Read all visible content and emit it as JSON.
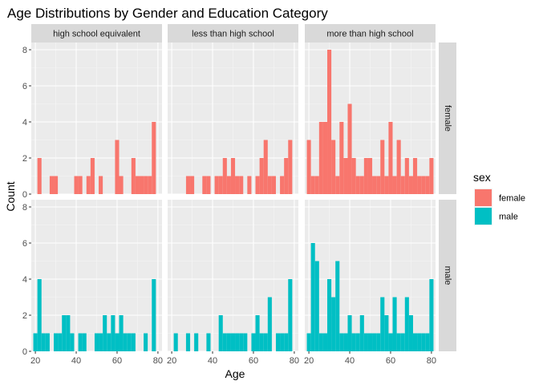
{
  "chart_data": {
    "type": "bar",
    "subtype": "faceted-histogram",
    "title": "Age Distributions by Gender and Education Category",
    "xlabel": "Age",
    "ylabel": "Count",
    "xlim": [
      18,
      82
    ],
    "ylim": [
      0,
      8.4
    ],
    "xticks": [
      20,
      40,
      60,
      80
    ],
    "yticks": [
      0,
      2,
      4,
      6,
      8
    ],
    "bin_width": 2,
    "grid": true,
    "legend": {
      "title": "sex",
      "placement": "right",
      "entries": [
        {
          "name": "female",
          "color": "#F8766D"
        },
        {
          "name": "male",
          "color": "#00BFC4"
        }
      ]
    },
    "col_facets": [
      "high school equivalent",
      "less than high school",
      "more than high school"
    ],
    "row_facets": [
      "female",
      "male"
    ],
    "panels": [
      {
        "col": "high school equivalent",
        "row": "female",
        "bins": [
          [
            22,
            2
          ],
          [
            28,
            1
          ],
          [
            30,
            1
          ],
          [
            40,
            1
          ],
          [
            42,
            1
          ],
          [
            46,
            1
          ],
          [
            48,
            2
          ],
          [
            52,
            1
          ],
          [
            60,
            3
          ],
          [
            62,
            1
          ],
          [
            68,
            2
          ],
          [
            70,
            1
          ],
          [
            72,
            1
          ],
          [
            74,
            1
          ],
          [
            76,
            1
          ],
          [
            78,
            4
          ]
        ]
      },
      {
        "col": "less than high school",
        "row": "female",
        "bins": [
          [
            28,
            1
          ],
          [
            30,
            1
          ],
          [
            36,
            1
          ],
          [
            38,
            1
          ],
          [
            42,
            1
          ],
          [
            44,
            1
          ],
          [
            46,
            2
          ],
          [
            48,
            1
          ],
          [
            50,
            2
          ],
          [
            52,
            1
          ],
          [
            54,
            1
          ],
          [
            58,
            1
          ],
          [
            62,
            1
          ],
          [
            64,
            2
          ],
          [
            66,
            3
          ],
          [
            68,
            1
          ],
          [
            70,
            1
          ],
          [
            74,
            1
          ],
          [
            76,
            2
          ],
          [
            78,
            3
          ]
        ]
      },
      {
        "col": "more than high school",
        "row": "female",
        "bins": [
          [
            20,
            3
          ],
          [
            22,
            1
          ],
          [
            24,
            1
          ],
          [
            26,
            4
          ],
          [
            28,
            4
          ],
          [
            30,
            8
          ],
          [
            32,
            3
          ],
          [
            34,
            1
          ],
          [
            36,
            4
          ],
          [
            38,
            2
          ],
          [
            40,
            5
          ],
          [
            42,
            2
          ],
          [
            44,
            1
          ],
          [
            46,
            1
          ],
          [
            48,
            2
          ],
          [
            50,
            2
          ],
          [
            52,
            1
          ],
          [
            54,
            1
          ],
          [
            56,
            3
          ],
          [
            58,
            1
          ],
          [
            60,
            4
          ],
          [
            62,
            1
          ],
          [
            64,
            3
          ],
          [
            66,
            1
          ],
          [
            68,
            2
          ],
          [
            70,
            1
          ],
          [
            72,
            2
          ],
          [
            74,
            1
          ],
          [
            76,
            1
          ],
          [
            78,
            1
          ],
          [
            80,
            2
          ]
        ]
      },
      {
        "col": "high school equivalent",
        "row": "male",
        "bins": [
          [
            20,
            1
          ],
          [
            22,
            4
          ],
          [
            24,
            1
          ],
          [
            26,
            1
          ],
          [
            30,
            1
          ],
          [
            32,
            1
          ],
          [
            34,
            2
          ],
          [
            36,
            2
          ],
          [
            38,
            1
          ],
          [
            42,
            1
          ],
          [
            44,
            1
          ],
          [
            50,
            1
          ],
          [
            52,
            1
          ],
          [
            54,
            2
          ],
          [
            56,
            1
          ],
          [
            58,
            2
          ],
          [
            60,
            1
          ],
          [
            62,
            2
          ],
          [
            64,
            1
          ],
          [
            66,
            1
          ],
          [
            68,
            1
          ],
          [
            74,
            1
          ],
          [
            78,
            4
          ]
        ]
      },
      {
        "col": "less than high school",
        "row": "male",
        "bins": [
          [
            22,
            1
          ],
          [
            28,
            1
          ],
          [
            32,
            1
          ],
          [
            38,
            1
          ],
          [
            44,
            2
          ],
          [
            46,
            1
          ],
          [
            48,
            1
          ],
          [
            50,
            1
          ],
          [
            52,
            1
          ],
          [
            54,
            1
          ],
          [
            56,
            1
          ],
          [
            60,
            1
          ],
          [
            62,
            2
          ],
          [
            64,
            1
          ],
          [
            66,
            1
          ],
          [
            68,
            3
          ],
          [
            72,
            1
          ],
          [
            74,
            1
          ],
          [
            76,
            1
          ],
          [
            78,
            4
          ]
        ]
      },
      {
        "col": "more than high school",
        "row": "male",
        "bins": [
          [
            20,
            1
          ],
          [
            22,
            6
          ],
          [
            24,
            5
          ],
          [
            26,
            1
          ],
          [
            28,
            1
          ],
          [
            30,
            4
          ],
          [
            32,
            3
          ],
          [
            34,
            5
          ],
          [
            36,
            1
          ],
          [
            38,
            1
          ],
          [
            40,
            2
          ],
          [
            42,
            1
          ],
          [
            44,
            1
          ],
          [
            46,
            2
          ],
          [
            48,
            1
          ],
          [
            50,
            1
          ],
          [
            52,
            1
          ],
          [
            54,
            1
          ],
          [
            56,
            3
          ],
          [
            58,
            2
          ],
          [
            60,
            1
          ],
          [
            62,
            3
          ],
          [
            64,
            1
          ],
          [
            66,
            1
          ],
          [
            68,
            3
          ],
          [
            70,
            2
          ],
          [
            72,
            1
          ],
          [
            74,
            1
          ],
          [
            76,
            1
          ],
          [
            78,
            1
          ],
          [
            80,
            4
          ]
        ]
      }
    ]
  }
}
